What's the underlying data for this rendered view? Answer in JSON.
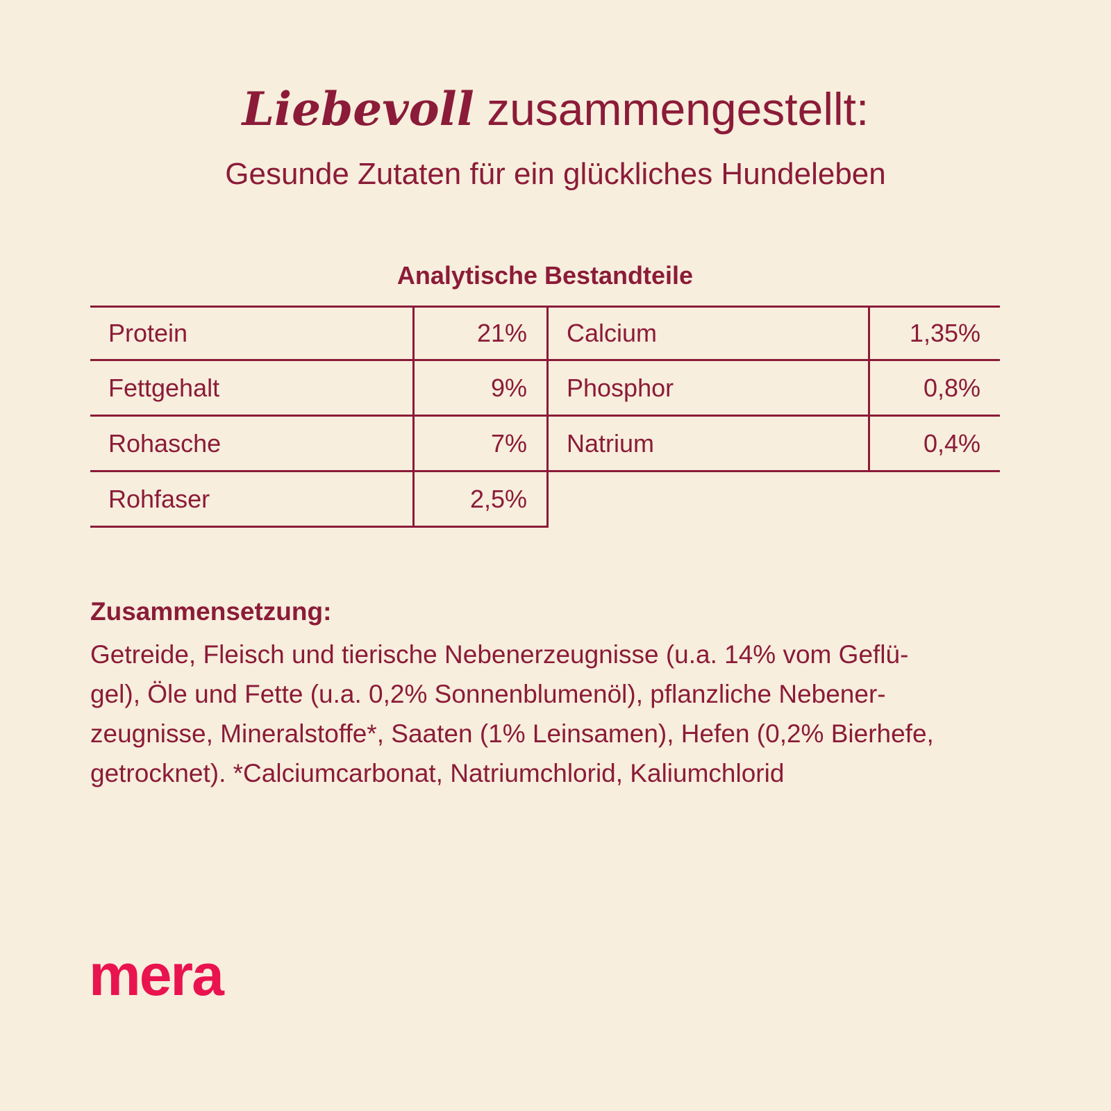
{
  "colors": {
    "background": "#f7eedd",
    "text": "#8b1b38",
    "brand": "#e9134f"
  },
  "header": {
    "title_emphasis": "Liebevoll",
    "title_rest": " zusammengestellt:",
    "subtitle": "Gesunde Zutaten für ein glückliches Hundeleben"
  },
  "analytical_table": {
    "title": "Analytische Bestandteile",
    "left_rows": [
      {
        "label": "Protein",
        "value": "21%"
      },
      {
        "label": "Fettgehalt",
        "value": "9%"
      },
      {
        "label": "Rohasche",
        "value": "7%"
      },
      {
        "label": "Rohfaser",
        "value": "2,5%"
      }
    ],
    "right_rows": [
      {
        "label": "Calcium",
        "value": "1,35%"
      },
      {
        "label": "Phosphor",
        "value": "0,8%"
      },
      {
        "label": "Natrium",
        "value": "0,4%"
      }
    ]
  },
  "composition": {
    "heading": "Zusammensetzung:",
    "lines": [
      "Getreide, Fleisch und tierische Nebenerzeugnisse (u.a. 14% vom Geflü-",
      "gel), Öle und Fette (u.a. 0,2% Sonnenblumenöl), pflanzliche Nebener-",
      "zeugnisse, Mineralstoffe*, Saaten (1% Leinsamen), Hefen (0,2% Bierhefe,",
      "getrocknet). *Calciumcarbonat, Natriumchlorid, Kaliumchlorid"
    ]
  },
  "footer": {
    "brand": "mera"
  }
}
